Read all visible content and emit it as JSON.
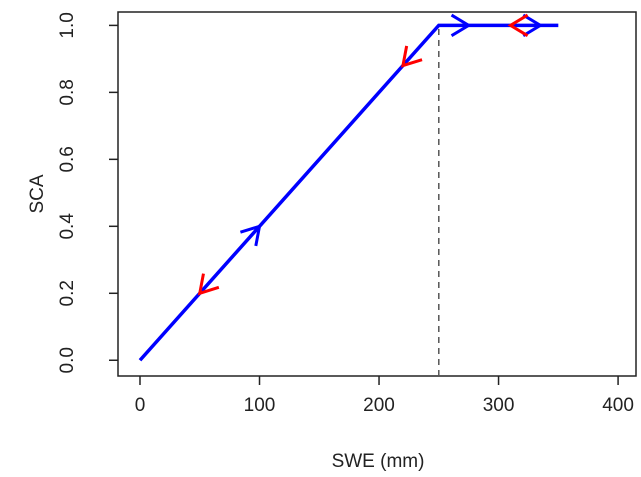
{
  "chart_data": {
    "type": "line",
    "x_label": "SWE (mm)",
    "y_label": "SCA",
    "series": [
      {
        "name": "SCA",
        "color": "#0000ff",
        "x": [
          0,
          250,
          350
        ],
        "values": [
          0,
          1,
          1
        ]
      }
    ],
    "vline": {
      "x": 250,
      "color": "#555555"
    },
    "arrows_up": {
      "color": "#0000ff",
      "x": [
        100,
        275,
        335
      ],
      "y": [
        0.4,
        1,
        1
      ]
    },
    "arrows_down": {
      "color": "#ff0000",
      "x": [
        50,
        220,
        310
      ],
      "y": [
        0.2,
        0.88,
        1
      ]
    },
    "xlim": [
      -18.4,
      415
    ],
    "xticks": [
      0,
      100,
      200,
      300,
      400
    ],
    "ylim": [
      -0.047,
      1.04
    ],
    "yticks": [
      {
        "value": 0,
        "label": "0.0"
      },
      0.2,
      0.4,
      0.6,
      0.8,
      {
        "value": 1,
        "label": "1.0"
      }
    ]
  }
}
